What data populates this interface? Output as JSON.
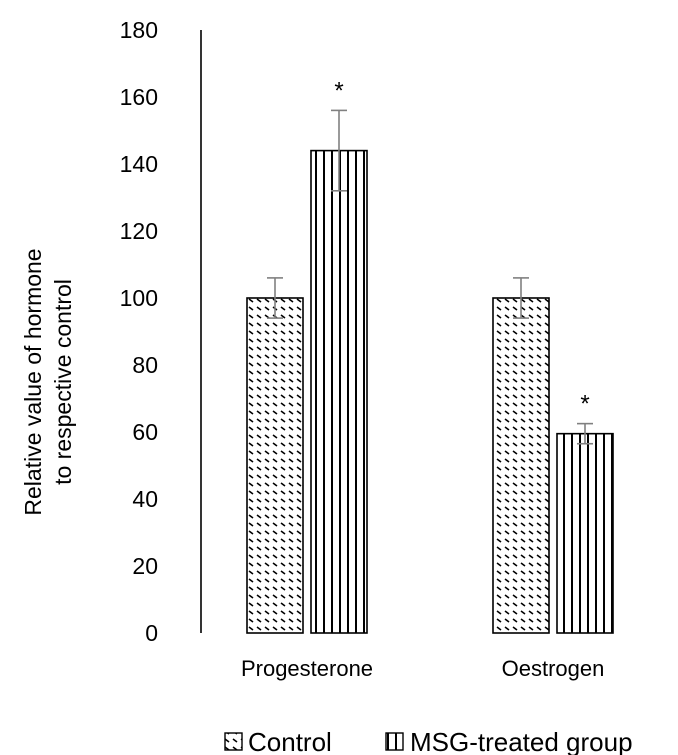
{
  "chart_data": {
    "type": "bar",
    "categories": [
      "Progesterone",
      "Oestrogen"
    ],
    "series": [
      {
        "name": "Control",
        "pattern": "diagonal-dashes",
        "values": [
          100,
          100
        ],
        "errors": [
          6,
          6
        ],
        "annotations": [
          "",
          ""
        ]
      },
      {
        "name": "MSG-treated group",
        "pattern": "vertical-lines",
        "values": [
          144,
          59.5
        ],
        "errors": [
          12,
          3
        ],
        "annotations": [
          "*",
          "*"
        ]
      }
    ],
    "ylabel_lines": [
      "Relative value of hormone",
      "to respective control"
    ],
    "ylim": [
      0,
      180
    ],
    "yticks": [
      0,
      20,
      40,
      60,
      80,
      100,
      120,
      140,
      160,
      180
    ],
    "legend_position": "bottom",
    "grid": false,
    "colors": {
      "bar_fill": "#ffffff",
      "bar_stroke": "#000000",
      "error_bar": "#808080"
    }
  }
}
